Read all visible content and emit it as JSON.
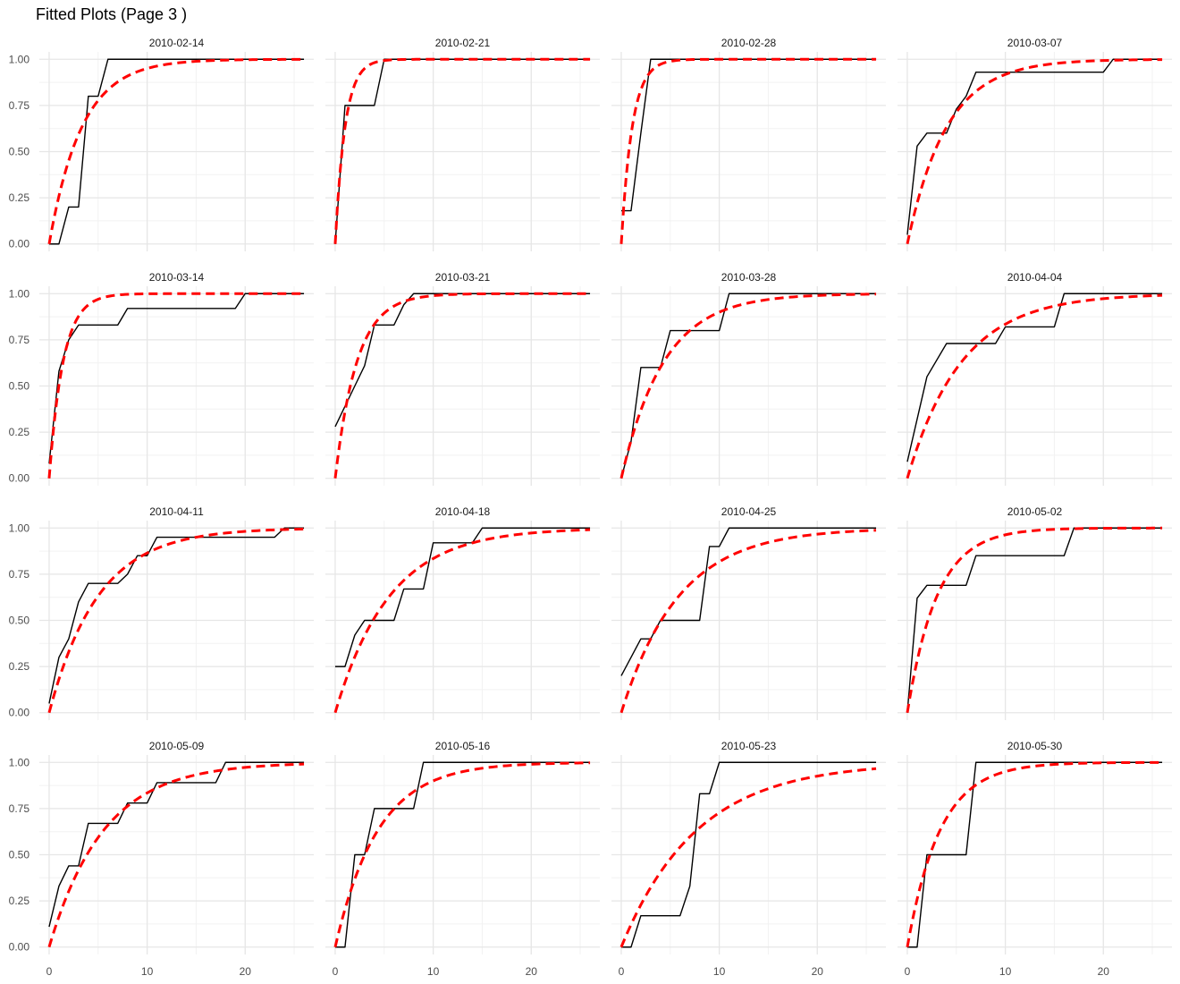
{
  "title": "Fitted Plots (Page 3 )",
  "chart_data": {
    "type": "line",
    "facet_layout": "4x4",
    "shared_axes": true,
    "xlim": [
      -1,
      27
    ],
    "ylim": [
      -0.04,
      1.04
    ],
    "x_ticks": [
      0,
      10,
      20
    ],
    "y_ticks": [
      0.0,
      0.25,
      0.5,
      0.75,
      1.0
    ],
    "y_tick_labels": [
      "0.00",
      "0.25",
      "0.50",
      "0.75",
      "1.00"
    ],
    "x_max": 26,
    "grid": true,
    "theme": "minimal",
    "colors": {
      "observed": "#000000",
      "fitted": "#ff0000"
    },
    "line_styles": {
      "observed": "solid",
      "fitted": "dashed"
    },
    "panels": [
      {
        "label": "2010-02-14",
        "fitted_rate": 0.3,
        "observed": [
          [
            0,
            0
          ],
          [
            1,
            0
          ],
          [
            2,
            0.2
          ],
          [
            3,
            0.2
          ],
          [
            4,
            0.8
          ],
          [
            5,
            0.8
          ],
          [
            6,
            1.0
          ],
          [
            26,
            1.0
          ]
        ]
      },
      {
        "label": "2010-02-21",
        "fitted_rate": 1.0,
        "observed": [
          [
            0,
            0
          ],
          [
            1,
            0.75
          ],
          [
            2,
            0.75
          ],
          [
            3,
            0.75
          ],
          [
            4,
            0.75
          ],
          [
            5,
            1.0
          ],
          [
            26,
            1.0
          ]
        ]
      },
      {
        "label": "2010-02-28",
        "fitted_rate": 0.9,
        "observed": [
          [
            0,
            0.18
          ],
          [
            1,
            0.18
          ],
          [
            2,
            0.6
          ],
          [
            3,
            1.0
          ],
          [
            26,
            1.0
          ]
        ]
      },
      {
        "label": "2010-03-07",
        "fitted_rate": 0.25,
        "observed": [
          [
            0,
            0.05
          ],
          [
            1,
            0.53
          ],
          [
            2,
            0.6
          ],
          [
            3,
            0.6
          ],
          [
            4,
            0.6
          ],
          [
            5,
            0.73
          ],
          [
            6,
            0.8
          ],
          [
            7,
            0.93
          ],
          [
            20,
            0.93
          ],
          [
            21,
            1.0
          ],
          [
            26,
            1.0
          ]
        ]
      },
      {
        "label": "2010-03-14",
        "fitted_rate": 0.7,
        "observed": [
          [
            0,
            0.08
          ],
          [
            1,
            0.58
          ],
          [
            2,
            0.75
          ],
          [
            3,
            0.83
          ],
          [
            7,
            0.83
          ],
          [
            8,
            0.92
          ],
          [
            19,
            0.92
          ],
          [
            20,
            1.0
          ],
          [
            26,
            1.0
          ]
        ]
      },
      {
        "label": "2010-03-21",
        "fitted_rate": 0.45,
        "observed": [
          [
            0,
            0.28
          ],
          [
            1,
            0.39
          ],
          [
            2,
            0.5
          ],
          [
            3,
            0.61
          ],
          [
            4,
            0.83
          ],
          [
            6,
            0.83
          ],
          [
            7,
            0.94
          ],
          [
            8,
            1.0
          ],
          [
            26,
            1.0
          ]
        ]
      },
      {
        "label": "2010-03-28",
        "fitted_rate": 0.23,
        "observed": [
          [
            0,
            0
          ],
          [
            1,
            0.2
          ],
          [
            2,
            0.6
          ],
          [
            4,
            0.6
          ],
          [
            5,
            0.8
          ],
          [
            10,
            0.8
          ],
          [
            11,
            1.0
          ],
          [
            26,
            1.0
          ]
        ]
      },
      {
        "label": "2010-04-04",
        "fitted_rate": 0.18,
        "observed": [
          [
            0,
            0.09
          ],
          [
            2,
            0.55
          ],
          [
            4,
            0.73
          ],
          [
            9,
            0.73
          ],
          [
            10,
            0.82
          ],
          [
            15,
            0.82
          ],
          [
            16,
            1.0
          ],
          [
            26,
            1.0
          ]
        ]
      },
      {
        "label": "2010-04-11",
        "fitted_rate": 0.2,
        "observed": [
          [
            0,
            0.05
          ],
          [
            1,
            0.3
          ],
          [
            2,
            0.4
          ],
          [
            3,
            0.6
          ],
          [
            4,
            0.7
          ],
          [
            7,
            0.7
          ],
          [
            8,
            0.75
          ],
          [
            9,
            0.85
          ],
          [
            10,
            0.85
          ],
          [
            11,
            0.95
          ],
          [
            23,
            0.95
          ],
          [
            24,
            1.0
          ],
          [
            26,
            1.0
          ]
        ]
      },
      {
        "label": "2010-04-18",
        "fitted_rate": 0.18,
        "observed": [
          [
            0,
            0.25
          ],
          [
            1,
            0.25
          ],
          [
            2,
            0.42
          ],
          [
            3,
            0.5
          ],
          [
            6,
            0.5
          ],
          [
            7,
            0.67
          ],
          [
            9,
            0.67
          ],
          [
            10,
            0.92
          ],
          [
            14,
            0.92
          ],
          [
            15,
            1.0
          ],
          [
            26,
            1.0
          ]
        ]
      },
      {
        "label": "2010-04-25",
        "fitted_rate": 0.17,
        "observed": [
          [
            0,
            0.2
          ],
          [
            2,
            0.4
          ],
          [
            3,
            0.4
          ],
          [
            4,
            0.5
          ],
          [
            8,
            0.5
          ],
          [
            9,
            0.9
          ],
          [
            10,
            0.9
          ],
          [
            11,
            1.0
          ],
          [
            26,
            1.0
          ]
        ]
      },
      {
        "label": "2010-05-02",
        "fitted_rate": 0.33,
        "observed": [
          [
            0,
            0
          ],
          [
            1,
            0.62
          ],
          [
            2,
            0.69
          ],
          [
            6,
            0.69
          ],
          [
            7,
            0.85
          ],
          [
            16,
            0.85
          ],
          [
            17,
            1.0
          ],
          [
            26,
            1.0
          ]
        ]
      },
      {
        "label": "2010-05-09",
        "fitted_rate": 0.18,
        "observed": [
          [
            0,
            0.11
          ],
          [
            1,
            0.33
          ],
          [
            2,
            0.44
          ],
          [
            3,
            0.44
          ],
          [
            4,
            0.67
          ],
          [
            7,
            0.67
          ],
          [
            8,
            0.78
          ],
          [
            10,
            0.78
          ],
          [
            11,
            0.89
          ],
          [
            17,
            0.89
          ],
          [
            18,
            1.0
          ],
          [
            26,
            1.0
          ]
        ]
      },
      {
        "label": "2010-05-16",
        "fitted_rate": 0.23,
        "observed": [
          [
            0,
            0
          ],
          [
            1,
            0
          ],
          [
            2,
            0.5
          ],
          [
            3,
            0.5
          ],
          [
            4,
            0.75
          ],
          [
            8,
            0.75
          ],
          [
            9,
            1.0
          ],
          [
            26,
            1.0
          ]
        ]
      },
      {
        "label": "2010-05-23",
        "fitted_rate": 0.13,
        "observed": [
          [
            0,
            0
          ],
          [
            1,
            0
          ],
          [
            2,
            0.17
          ],
          [
            6,
            0.17
          ],
          [
            7,
            0.33
          ],
          [
            8,
            0.83
          ],
          [
            9,
            0.83
          ],
          [
            10,
            1.0
          ],
          [
            26,
            1.0
          ]
        ]
      },
      {
        "label": "2010-05-30",
        "fitted_rate": 0.3,
        "observed": [
          [
            0,
            0
          ],
          [
            1,
            0
          ],
          [
            2,
            0.5
          ],
          [
            6,
            0.5
          ],
          [
            7,
            1.0
          ],
          [
            26,
            1.0
          ]
        ]
      }
    ]
  }
}
